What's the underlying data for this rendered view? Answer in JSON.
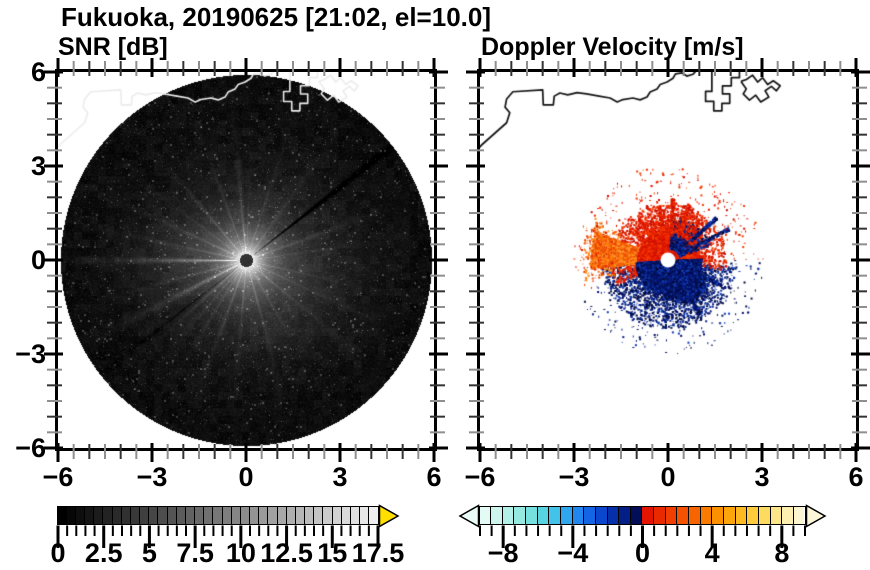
{
  "figure": {
    "title": "Fukuoka, 20190625 [21:02, el=10.0]",
    "panels": [
      {
        "key": "snr",
        "subtitle": "SNR [dB]"
      },
      {
        "key": "velocity",
        "subtitle": "Doppler Velocity [m/s]"
      }
    ]
  },
  "axes": {
    "range": [
      -6,
      6
    ],
    "major_tick_values": [
      -6,
      -3,
      0,
      3,
      6
    ],
    "major_tick_labels": [
      "−6",
      "−3",
      "0",
      "3",
      "6"
    ],
    "minor_tick_step": 0.5
  },
  "colorbars": {
    "snr": {
      "min": 0,
      "max": 17.5,
      "cells": 35,
      "tick_values": [
        0,
        2.5,
        5,
        7.5,
        10,
        12.5,
        15,
        17.5
      ],
      "tick_labels": [
        "0",
        "2.5",
        "5",
        "7.5",
        "10",
        "12.5",
        "15",
        "17.5"
      ],
      "style": "grayscale",
      "start_color": "#000000",
      "end_color": "#f2f2f2",
      "over_arrow_color": "#ffdf00"
    },
    "velocity": {
      "min": -9.33,
      "max": 9.33,
      "cells": 28,
      "tick_values": [
        -8,
        -4,
        0,
        4,
        8
      ],
      "tick_labels": [
        "−8",
        "−4",
        "0",
        "4",
        "8"
      ],
      "cell_colors": [
        "#e4faf4",
        "#cdf5ee",
        "#b3f0e7",
        "#95e9e1",
        "#75e0dd",
        "#58d4e1",
        "#43c2ea",
        "#30a6ee",
        "#2187ee",
        "#1365e5",
        "#0a47cd",
        "#0530aa",
        "#031e85",
        "#020e58",
        "#e31400",
        "#ea2900",
        "#f03d00",
        "#f45100",
        "#f76500",
        "#f97b00",
        "#fb9000",
        "#fca60c",
        "#fdb922",
        "#fdcb3c",
        "#fdda60",
        "#fde68a",
        "#fcefb0",
        "#fbf6d1"
      ],
      "under_arrow_color": "#eafcf7",
      "over_arrow_color": "#fbf7d8"
    }
  },
  "chart_data": {
    "type": "heatmap",
    "description": "Dual-panel Doppler radar PPI display: left panel signal-to-noise ratio, right panel Doppler velocity, on a ±6 km east/north grid centered on the radar.",
    "meta": {
      "station": "Fukuoka",
      "date": "20190625",
      "time": "21:02",
      "elevation_deg": 10.0
    },
    "x_axis": {
      "range_km": [
        -6,
        6
      ],
      "ticks": [
        -6,
        -3,
        0,
        3,
        6
      ],
      "minor_step_km": 0.5
    },
    "y_axis": {
      "range_km": [
        -6,
        6
      ],
      "ticks": [
        -6,
        -3,
        0,
        3,
        6
      ],
      "minor_step_km": 0.5
    },
    "snr_field": {
      "units": "dB",
      "scale_range_db": [
        0,
        17.5
      ],
      "scan_disk_radius_km": 5.9,
      "disk_center_km": [
        0,
        0
      ],
      "background": "near-black speckle noise (0-2 dB) filling the scan disk",
      "core_glow": "bright high-SNR glow within ~1.5 km of the radar, peaking near 15-17.5 dB",
      "center_dot": "small dark dot of ~0.2 km radius at the radar position",
      "radial_spokes": "many thin bright clutter spokes radiating from the center; brightest ray points west, secondary rays WSW and north",
      "dark_ray_azimuth": "narrow dark ray toward the northeast (~38 deg)"
    },
    "velocity_field": {
      "units": "m/s",
      "scale_range_ms": [
        -9.33,
        9.33
      ],
      "echo_extent_km": 2.4,
      "center_hole_radius_km": 0.2,
      "positive_echo": "red/orange (away) echoes over the northern half around the radar with a dense orange streak extending WNW to ~2.3 km",
      "negative_echo": "navy/dark-blue (toward) echoes over the southern half, densest SW of center and in a lobe to the SE out to ~1.5 km",
      "speckle": "scattered isolated red and blue speckles out to ~3 km"
    },
    "coastline_km": {
      "main": [
        [
          -6.05,
          3.55
        ],
        [
          -5.95,
          3.67
        ],
        [
          -5.15,
          4.38
        ],
        [
          -5.05,
          4.7
        ],
        [
          -5.2,
          4.88
        ],
        [
          -5.15,
          5.14
        ],
        [
          -4.95,
          5.37
        ],
        [
          -4.0,
          5.43
        ],
        [
          -3.98,
          4.95
        ],
        [
          -3.66,
          4.95
        ],
        [
          -3.63,
          5.23
        ],
        [
          -3.45,
          5.33
        ],
        [
          -3.2,
          5.27
        ],
        [
          -2.9,
          5.34
        ],
        [
          -2.6,
          5.3
        ],
        [
          -2.2,
          5.23
        ],
        [
          -1.85,
          5.17
        ],
        [
          -1.62,
          5.04
        ],
        [
          -1.44,
          5.12
        ],
        [
          -1.12,
          5.17
        ],
        [
          -0.89,
          5.11
        ],
        [
          -0.67,
          5.2
        ],
        [
          -0.57,
          5.36
        ],
        [
          -0.35,
          5.46
        ],
        [
          -0.25,
          5.6
        ],
        [
          -0.03,
          5.68
        ],
        [
          0.16,
          5.8
        ],
        [
          0.24,
          5.94
        ],
        [
          0.45,
          5.97
        ],
        [
          0.6,
          5.87
        ],
        [
          0.8,
          5.93
        ],
        [
          0.92,
          6.06
        ]
      ],
      "harbor_a": [
        [
          1.4,
          6.06
        ],
        [
          1.4,
          5.38
        ],
        [
          1.2,
          5.38
        ],
        [
          1.2,
          5.06
        ],
        [
          1.46,
          5.06
        ],
        [
          1.46,
          4.76
        ],
        [
          1.72,
          4.76
        ],
        [
          1.72,
          5.0
        ],
        [
          1.97,
          5.0
        ],
        [
          1.97,
          5.3
        ],
        [
          1.74,
          5.3
        ],
        [
          1.74,
          5.56
        ],
        [
          2.02,
          5.56
        ],
        [
          2.02,
          5.82
        ],
        [
          2.28,
          5.82
        ],
        [
          2.28,
          6.06
        ]
      ],
      "harbor_b": [
        [
          2.33,
          5.7
        ],
        [
          2.5,
          5.46
        ],
        [
          2.4,
          5.3
        ],
        [
          2.6,
          5.1
        ],
        [
          2.8,
          5.26
        ],
        [
          2.96,
          5.04
        ],
        [
          3.22,
          5.2
        ],
        [
          3.1,
          5.4
        ],
        [
          3.3,
          5.54
        ],
        [
          3.46,
          5.4
        ],
        [
          3.58,
          5.56
        ],
        [
          3.36,
          5.72
        ],
        [
          3.18,
          5.6
        ],
        [
          3.02,
          5.82
        ],
        [
          2.86,
          5.68
        ],
        [
          2.7,
          5.9
        ],
        [
          2.5,
          5.76
        ],
        [
          2.33,
          5.7
        ]
      ]
    }
  },
  "colors": {
    "frame": "#000000",
    "coastline_on_snr": "#ececec",
    "coastline_on_velocity": "#141414",
    "background": "#ffffff"
  }
}
